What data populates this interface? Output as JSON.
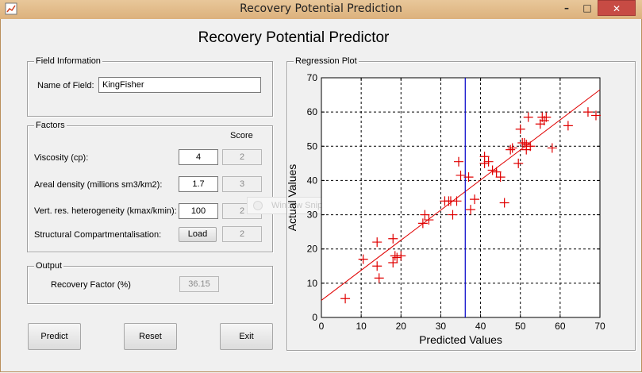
{
  "window": {
    "title": "Recovery Potential Prediction",
    "minimize": "–",
    "maximize": "□",
    "close": "✕",
    "icon": "matlab-figure-icon"
  },
  "heading": "Recovery Potential Predictor",
  "field_info": {
    "title": "Field Information",
    "name_label": "Name of Field:",
    "name_value": "KingFisher"
  },
  "factors": {
    "title": "Factors",
    "score_header": "Score",
    "viscosity": {
      "label": "Viscosity (cp):",
      "value": "4",
      "score": "2"
    },
    "areal_density": {
      "label": "Areal density (millions sm3/km2):",
      "value": "1.7",
      "score": "3"
    },
    "heterogeneity": {
      "label": "Vert. res. heterogeneity (kmax/kmin):",
      "value": "100",
      "score": "2"
    },
    "compartment": {
      "label": "Structural Compartmentalisation:",
      "button": "Load",
      "score": "2"
    }
  },
  "output": {
    "title": "Output",
    "label": "Recovery Factor (%)",
    "value": "36.15"
  },
  "buttons": {
    "predict": "Predict",
    "reset": "Reset",
    "exit": "Exit"
  },
  "ghost_window": {
    "label": "Window Snip"
  },
  "chart_data": {
    "type": "scatter",
    "panel_title": "Regression Plot",
    "xlabel": "Predicted Values",
    "ylabel": "Actual Values",
    "xlim": [
      0,
      70
    ],
    "ylim": [
      0,
      70
    ],
    "xticks": [
      0,
      10,
      20,
      30,
      40,
      50,
      60,
      70
    ],
    "yticks": [
      0,
      10,
      20,
      30,
      40,
      50,
      60,
      70
    ],
    "grid": true,
    "marker": "+",
    "marker_color": "#e00000",
    "fit_line": {
      "x": [
        0,
        70
      ],
      "y": [
        5,
        66.5
      ],
      "color": "#e00000"
    },
    "vline": {
      "x": 36.15,
      "color": "#0000c8"
    },
    "points": [
      [
        6,
        5.5
      ],
      [
        10.5,
        17
      ],
      [
        14,
        15
      ],
      [
        14,
        22
      ],
      [
        14.5,
        11.5
      ],
      [
        18,
        23
      ],
      [
        18,
        16
      ],
      [
        18.5,
        18
      ],
      [
        19,
        17.5
      ],
      [
        20,
        18
      ],
      [
        25.5,
        27.5
      ],
      [
        26,
        30
      ],
      [
        27,
        28.5
      ],
      [
        31,
        34
      ],
      [
        32,
        34
      ],
      [
        32.5,
        34
      ],
      [
        33,
        30
      ],
      [
        34,
        34
      ],
      [
        34.5,
        45.5
      ],
      [
        35,
        41.5
      ],
      [
        37,
        41
      ],
      [
        37.5,
        31.5
      ],
      [
        38.5,
        34.5
      ],
      [
        41,
        47
      ],
      [
        41,
        45
      ],
      [
        42,
        45.5
      ],
      [
        43,
        43
      ],
      [
        44,
        42.5
      ],
      [
        45,
        41
      ],
      [
        46,
        33.5
      ],
      [
        47.5,
        49
      ],
      [
        48,
        49.5
      ],
      [
        49.5,
        45
      ],
      [
        50,
        55
      ],
      [
        50.5,
        51
      ],
      [
        51,
        51
      ],
      [
        51.5,
        50.5
      ],
      [
        51.5,
        49
      ],
      [
        52,
        58.5
      ],
      [
        52.5,
        50
      ],
      [
        55,
        56.5
      ],
      [
        55.5,
        58.5
      ],
      [
        56,
        57.5
      ],
      [
        56.5,
        58.5
      ],
      [
        58,
        49.5
      ],
      [
        62,
        56
      ],
      [
        67,
        60
      ],
      [
        69,
        59
      ]
    ]
  }
}
